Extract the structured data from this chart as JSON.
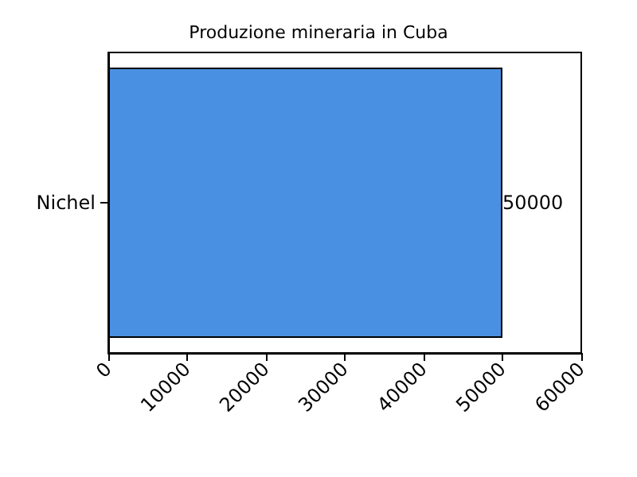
{
  "chart_data": {
    "type": "bar",
    "title": "Produzione mineraria in Cuba",
    "orientation": "horizontal",
    "categories": [
      "Nichel"
    ],
    "values": [
      50000
    ],
    "color": "#4a90e2",
    "xlim": [
      0,
      60000
    ],
    "xticks": [
      0,
      10000,
      20000,
      30000,
      40000,
      50000,
      60000
    ],
    "data_labels": true,
    "grid": false
  }
}
